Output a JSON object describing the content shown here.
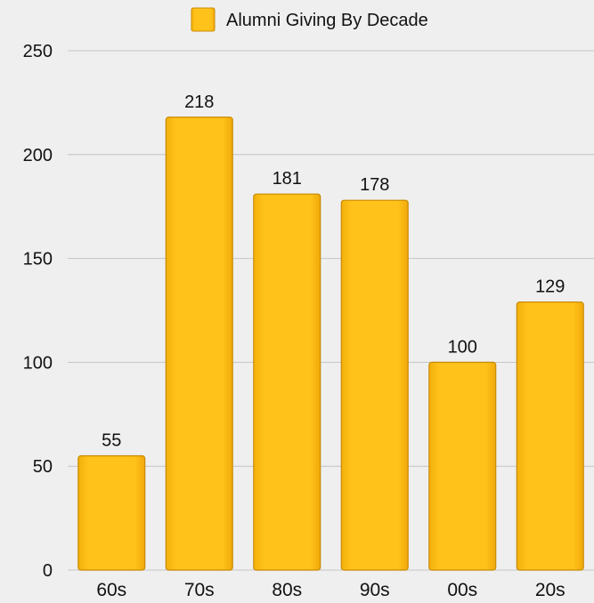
{
  "chart_data": {
    "type": "bar",
    "categories": [
      "60s",
      "70s",
      "80s",
      "90s",
      "00s",
      "20s"
    ],
    "series": [
      {
        "name": "Alumni Giving By Decade",
        "values": [
          55,
          218,
          181,
          178,
          100,
          129
        ]
      }
    ],
    "ylim": [
      0,
      250
    ],
    "yticks": [
      0,
      50,
      100,
      150,
      200,
      250
    ],
    "grid": true,
    "legend_position": "top-center",
    "show_data_labels": true
  },
  "colors": {
    "background": "#efefef",
    "bar_fill": "#ffc219",
    "bar_stroke": "#c98a00",
    "gridline": "#c4c4c4"
  }
}
